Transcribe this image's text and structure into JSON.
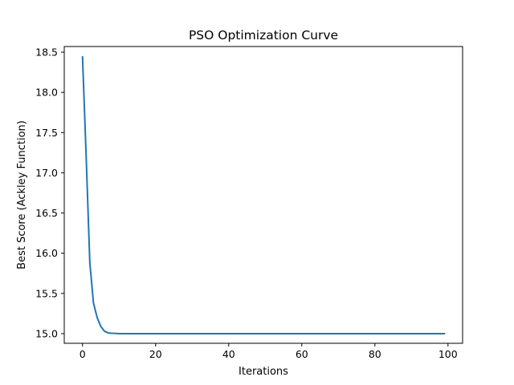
{
  "chart_data": {
    "type": "line",
    "title": "PSO Optimization Curve",
    "xlabel": "Iterations",
    "ylabel": "Best Score (Ackley Function)",
    "xlim": [
      -5,
      104
    ],
    "ylim": [
      14.88,
      18.57
    ],
    "xticks": [
      0,
      20,
      40,
      60,
      80,
      100
    ],
    "yticks": [
      15.0,
      15.5,
      16.0,
      16.5,
      17.0,
      17.5,
      18.0,
      18.5
    ],
    "ytick_labels": [
      "15.0",
      "15.5",
      "16.0",
      "16.5",
      "17.0",
      "17.5",
      "18.0",
      "18.5"
    ],
    "grid": false,
    "series": [
      {
        "color": "#1f77b4",
        "x": [
          0,
          1,
          2,
          3,
          4,
          5,
          6,
          7,
          8,
          9,
          10,
          15,
          20,
          30,
          40,
          50,
          60,
          70,
          80,
          90,
          99
        ],
        "y": [
          18.44,
          17.2,
          15.88,
          15.38,
          15.2,
          15.09,
          15.03,
          15.01,
          15.005,
          15.003,
          15.0,
          15.0,
          15.0,
          15.0,
          15.0,
          15.0,
          15.0,
          15.0,
          15.0,
          15.0,
          15.0
        ]
      }
    ]
  }
}
